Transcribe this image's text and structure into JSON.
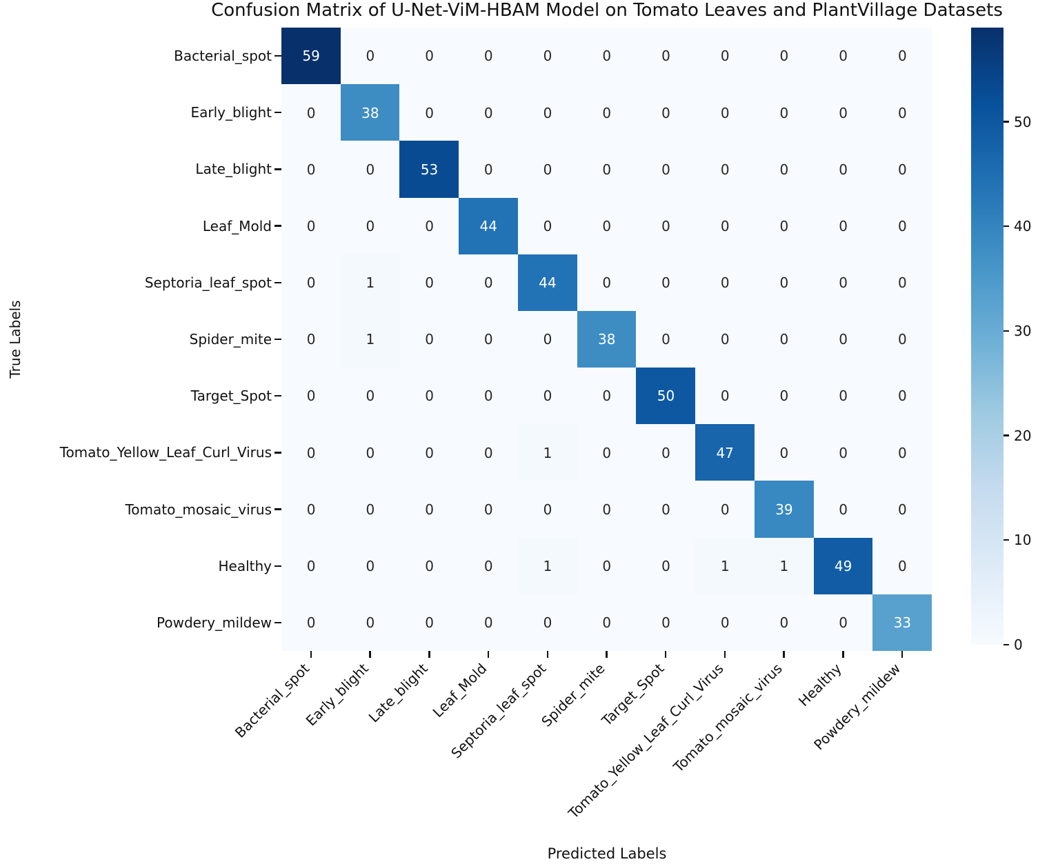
{
  "chart_data": {
    "type": "heatmap",
    "title": "Confusion Matrix of U-Net-ViM-HBAM Model on Tomato Leaves and PlantVillage Datasets",
    "xlabel": "Predicted Labels",
    "ylabel": "True Labels",
    "categories": [
      "Bacterial_spot",
      "Early_blight",
      "Late_blight",
      "Leaf_Mold",
      "Septoria_leaf_spot",
      "Spider_mite",
      "Target_Spot",
      "Tomato_Yellow_Leaf_Curl_Virus",
      "Tomato_mosaic_virus",
      "Healthy",
      "Powdery_mildew"
    ],
    "matrix": [
      [
        59,
        0,
        0,
        0,
        0,
        0,
        0,
        0,
        0,
        0,
        0
      ],
      [
        0,
        38,
        0,
        0,
        0,
        0,
        0,
        0,
        0,
        0,
        0
      ],
      [
        0,
        0,
        53,
        0,
        0,
        0,
        0,
        0,
        0,
        0,
        0
      ],
      [
        0,
        0,
        0,
        44,
        0,
        0,
        0,
        0,
        0,
        0,
        0
      ],
      [
        0,
        1,
        0,
        0,
        44,
        0,
        0,
        0,
        0,
        0,
        0
      ],
      [
        0,
        1,
        0,
        0,
        0,
        38,
        0,
        0,
        0,
        0,
        0
      ],
      [
        0,
        0,
        0,
        0,
        0,
        0,
        50,
        0,
        0,
        0,
        0
      ],
      [
        0,
        0,
        0,
        0,
        1,
        0,
        0,
        47,
        0,
        0,
        0
      ],
      [
        0,
        0,
        0,
        0,
        0,
        0,
        0,
        0,
        39,
        0,
        0
      ],
      [
        0,
        0,
        0,
        0,
        1,
        0,
        0,
        1,
        1,
        49,
        0
      ],
      [
        0,
        0,
        0,
        0,
        0,
        0,
        0,
        0,
        0,
        0,
        33
      ]
    ],
    "vmin": 0,
    "vmax": 59,
    "grid": false,
    "legend_position": "right-colorbar",
    "colormap": {
      "name": "Blues",
      "stops": [
        "#f7fbff",
        "#deebf7",
        "#c6dbef",
        "#9ecae1",
        "#6baed6",
        "#4292c6",
        "#2171b5",
        "#08519c",
        "#08306b"
      ]
    },
    "colorbar": {
      "ticks": [
        0,
        10,
        20,
        30,
        40,
        50
      ],
      "range": [
        0,
        59
      ]
    },
    "annotation_colors": {
      "light_text": "#ffffff",
      "dark_text": "#262626"
    }
  }
}
